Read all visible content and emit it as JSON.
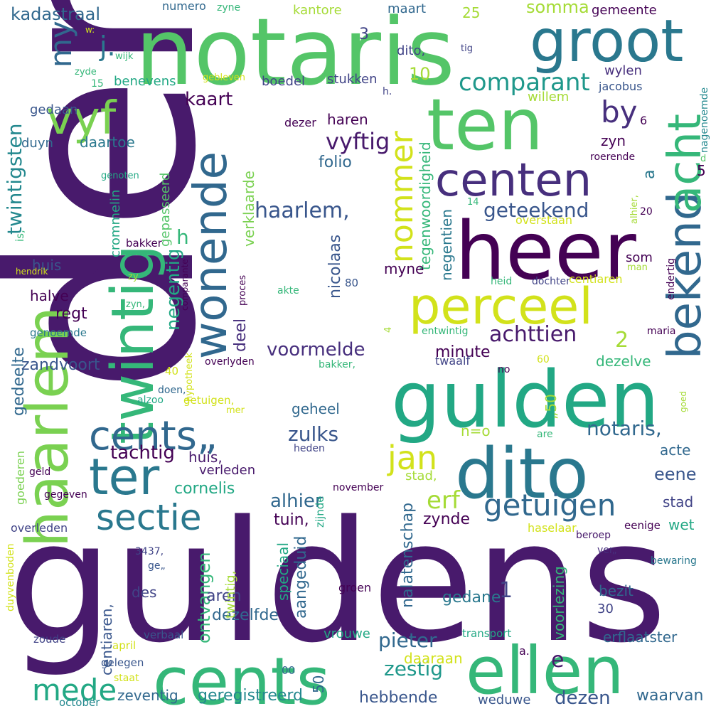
{
  "palette": {
    "background": "#ffffff",
    "colors": [
      "#440154",
      "#481a6c",
      "#472f7d",
      "#414487",
      "#39568c",
      "#31688e",
      "#2a788e",
      "#23888e",
      "#1f988b",
      "#22a884",
      "#35b779",
      "#54c568",
      "#7ad151",
      "#a5db36",
      "#d2e21b",
      "#fde725"
    ]
  },
  "words": [
    {
      "text": "den",
      "color": "#481a6c"
    },
    {
      "text": "guldens",
      "color": "#481a6c"
    },
    {
      "text": "notaris",
      "color": "#54c568"
    },
    {
      "text": "ten",
      "color": "#54c568"
    },
    {
      "text": "heer",
      "color": "#440154"
    },
    {
      "text": "gulden",
      "color": "#22a884"
    },
    {
      "text": "dito",
      "color": "#2a788e"
    },
    {
      "text": "groot",
      "color": "#2a788e"
    },
    {
      "text": "haarlem",
      "color": "#7ad151"
    },
    {
      "text": "twintig",
      "color": "#35b779"
    },
    {
      "text": "cents",
      "color": "#35b779"
    },
    {
      "text": "ellen",
      "color": "#35b779"
    },
    {
      "text": "bekend",
      "color": "#31688e"
    },
    {
      "text": "acht",
      "color": "#35b779"
    },
    {
      "text": "perceel",
      "color": "#d2e21b"
    },
    {
      "text": "centen",
      "color": "#472f7d"
    },
    {
      "text": "wonende",
      "color": "#31688e"
    },
    {
      "text": "vyf",
      "color": "#7ad151"
    },
    {
      "text": "ter",
      "color": "#2a788e"
    },
    {
      "text": "cents„",
      "color": "#31688e"
    },
    {
      "text": "sectie",
      "color": "#2a788e"
    },
    {
      "text": "getuigen",
      "color": "#31688e"
    },
    {
      "text": "nommer",
      "color": "#d2e21b"
    },
    {
      "text": "by",
      "color": "#472f7d"
    },
    {
      "text": "jan",
      "color": "#d2e21b"
    },
    {
      "text": "mede",
      "color": "#22a884"
    },
    {
      "text": "my",
      "color": "#31688e"
    },
    {
      "text": "j.",
      "color": "#2a788e"
    },
    {
      "text": "comparant",
      "color": "#1f988b"
    },
    {
      "text": "geteekend",
      "color": "#39568c"
    },
    {
      "text": "vyftig",
      "color": "#481a6c"
    },
    {
      "text": "haarlem,",
      "color": "#39568c"
    },
    {
      "text": "voormelde",
      "color": "#472f7d"
    },
    {
      "text": "achttien",
      "color": "#481a6c"
    },
    {
      "text": "notaris,",
      "color": "#31688e"
    },
    {
      "text": "zulks",
      "color": "#39568c"
    },
    {
      "text": "tachtig",
      "color": "#440154"
    },
    {
      "text": "erf",
      "color": "#a5db36"
    },
    {
      "text": "alhier",
      "color": "#31688e"
    },
    {
      "text": "pieter",
      "color": "#31688e"
    },
    {
      "text": "zestig",
      "color": "#1f988b"
    },
    {
      "text": "dezen",
      "color": "#39568c"
    },
    {
      "text": "eene",
      "color": "#39568c"
    },
    {
      "text": "kaart",
      "color": "#440154"
    },
    {
      "text": "somma",
      "color": "#a5db36"
    },
    {
      "text": "10",
      "color": "#a5db36"
    },
    {
      "text": "negentig",
      "color": "#22a884"
    },
    {
      "text": "twintigsten",
      "color": "#23888e"
    },
    {
      "text": "kadastraal",
      "color": "#31688e"
    },
    {
      "text": "gemeente",
      "color": "#440154"
    },
    {
      "text": "kantore",
      "color": "#a5db36"
    },
    {
      "text": "maart",
      "color": "#31688e"
    },
    {
      "text": "dito,",
      "color": "#414487"
    },
    {
      "text": "stukken",
      "color": "#414487"
    },
    {
      "text": "boedel",
      "color": "#414487"
    },
    {
      "text": "benevens",
      "color": "#22a884"
    },
    {
      "text": "gedaan",
      "color": "#39568c"
    },
    {
      "text": "haren",
      "color": "#440154"
    },
    {
      "text": "folio",
      "color": "#31688e"
    },
    {
      "text": "wylen",
      "color": "#472f7d"
    },
    {
      "text": "zyn",
      "color": "#440154"
    },
    {
      "text": "som",
      "color": "#440154"
    },
    {
      "text": "tegenwoordigheid",
      "color": "#35b779"
    },
    {
      "text": "negentien",
      "color": "#2a788e"
    },
    {
      "text": "daartoe",
      "color": "#2a788e"
    },
    {
      "text": "duyn",
      "color": "#31688e"
    },
    {
      "text": "huis",
      "color": "#39568c"
    },
    {
      "text": "zoo",
      "color": "#481a6c"
    },
    {
      "text": "halve",
      "color": "#440154"
    },
    {
      "text": "regt",
      "color": "#440154"
    },
    {
      "text": "gedeelte",
      "color": "#31688e"
    },
    {
      "text": "zandvoort",
      "color": "#39568c"
    },
    {
      "text": "deel",
      "color": "#472f7d"
    },
    {
      "text": "minute",
      "color": "#440154"
    },
    {
      "text": "geheel",
      "color": "#31688e"
    },
    {
      "text": "dezelve",
      "color": "#35b779"
    },
    {
      "text": "acte",
      "color": "#31688e"
    },
    {
      "text": "stad,",
      "color": "#a5db36"
    },
    {
      "text": "stad",
      "color": "#414487"
    },
    {
      "text": "wet",
      "color": "#22a884"
    },
    {
      "text": "zynde",
      "color": "#440154"
    },
    {
      "text": "tuin,",
      "color": "#440154"
    },
    {
      "text": "cornelis",
      "color": "#22a884"
    },
    {
      "text": "huis,",
      "color": "#481a6c"
    },
    {
      "text": "verleden",
      "color": "#481a6c"
    },
    {
      "text": "nalatenschap",
      "color": "#31688e"
    },
    {
      "text": "aangeduid",
      "color": "#31688e"
    },
    {
      "text": "ontvangen",
      "color": "#35b779"
    },
    {
      "text": "aren",
      "color": "#414487"
    },
    {
      "text": "des",
      "color": "#414487"
    },
    {
      "text": "gedane",
      "color": "#2a788e"
    },
    {
      "text": "bezit",
      "color": "#31688e"
    },
    {
      "text": "30",
      "color": "#414487"
    },
    {
      "text": "dezelfde",
      "color": "#31688e"
    },
    {
      "text": "vrouwe",
      "color": "#22a884"
    },
    {
      "text": "erflaatster",
      "color": "#31688e"
    },
    {
      "text": "geregistreerd",
      "color": "#23888e"
    },
    {
      "text": "hebbende",
      "color": "#39568c"
    },
    {
      "text": "weduwe",
      "color": "#39568c"
    },
    {
      "text": "waarvan",
      "color": "#31688e"
    },
    {
      "text": "zeventig",
      "color": "#31688e"
    },
    {
      "text": "daaraan",
      "color": "#d2e21b"
    },
    {
      "text": "50",
      "color": "#31688e"
    },
    {
      "text": "centiaren,",
      "color": "#39568c"
    },
    {
      "text": "twintig,",
      "color": "#a5db36"
    },
    {
      "text": "speciaal",
      "color": "#22a884"
    },
    {
      "text": "voorlezing",
      "color": "#35b779"
    },
    {
      "text": "e",
      "color": "#481a6c"
    },
    {
      "text": "1",
      "color": "#414487"
    },
    {
      "text": "2",
      "color": "#a5db36"
    },
    {
      "text": "3",
      "color": "#414487"
    },
    {
      "text": "a",
      "color": "#2a788e"
    },
    {
      "text": "h",
      "color": "#35b779"
    },
    {
      "text": "5",
      "color": "#440154"
    },
    {
      "text": "6",
      "color": "#440154"
    },
    {
      "text": "25",
      "color": "#a5db36"
    },
    {
      "text": "crommelin",
      "color": "#22a884"
    },
    {
      "text": "gepasseerd",
      "color": "#54c568"
    },
    {
      "text": "verklaarde",
      "color": "#7ad151"
    },
    {
      "text": "nicolaas",
      "color": "#39568c"
    },
    {
      "text": "myne",
      "color": "#440154"
    },
    {
      "text": "willem",
      "color": "#a5db36"
    },
    {
      "text": "jacobus",
      "color": "#39568c"
    },
    {
      "text": "nagenoemde",
      "color": "#23888e"
    },
    {
      "text": "roerende",
      "color": "#440154"
    },
    {
      "text": "alhier,",
      "color": "#a5db36"
    },
    {
      "text": "overstaan",
      "color": "#d2e21b"
    },
    {
      "text": "endertig",
      "color": "#440154"
    },
    {
      "text": "maria",
      "color": "#440154"
    },
    {
      "text": "man",
      "color": "#a5db36"
    },
    {
      "text": "dochter",
      "color": "#414487"
    },
    {
      "text": "heid",
      "color": "#35b779"
    },
    {
      "text": "centiaren",
      "color": "#d2e21b"
    },
    {
      "text": "entwintig",
      "color": "#35b779"
    },
    {
      "text": "twaalf",
      "color": "#414487"
    },
    {
      "text": "bakker,",
      "color": "#35b779"
    },
    {
      "text": "overlyden",
      "color": "#440154"
    },
    {
      "text": "no",
      "color": "#440154"
    },
    {
      "text": "60",
      "color": "#d2e21b"
    },
    {
      "text": "„50",
      "color": "#a5db36"
    },
    {
      "text": "n=o",
      "color": "#a5db36"
    },
    {
      "text": "are",
      "color": "#35b779"
    },
    {
      "text": "goed",
      "color": "#a5db36"
    },
    {
      "text": "heden",
      "color": "#414487"
    },
    {
      "text": "november",
      "color": "#440154"
    },
    {
      "text": "zijnde",
      "color": "#22a884"
    },
    {
      "text": "haselaar",
      "color": "#d2e21b"
    },
    {
      "text": "beroep",
      "color": "#481a6c"
    },
    {
      "text": "eenige",
      "color": "#440154"
    },
    {
      "text": "ver„",
      "color": "#472f7d"
    },
    {
      "text": "bewaring",
      "color": "#2a788e"
    },
    {
      "text": "groen",
      "color": "#440154"
    },
    {
      "text": "transport",
      "color": "#22a884"
    },
    {
      "text": "a.",
      "color": "#440154"
    },
    {
      "text": "00",
      "color": "#31688e"
    },
    {
      "text": "verbaal",
      "color": "#39568c"
    },
    {
      "text": "april",
      "color": "#d2e21b"
    },
    {
      "text": "gelegen",
      "color": "#39568c"
    },
    {
      "text": "staat",
      "color": "#d2e21b"
    },
    {
      "text": "october",
      "color": "#23888e"
    },
    {
      "text": "zoude",
      "color": "#414487"
    },
    {
      "text": "overleden",
      "color": "#414487"
    },
    {
      "text": "duyvenboden",
      "color": "#d2e21b"
    },
    {
      "text": "3437,",
      "color": "#414487"
    },
    {
      "text": "ge„",
      "color": "#39568c"
    },
    {
      "text": "geld",
      "color": "#440154"
    },
    {
      "text": "gegeven",
      "color": "#440154"
    },
    {
      "text": "goederen",
      "color": "#7ad151"
    },
    {
      "text": "genoemde",
      "color": "#2a788e"
    },
    {
      "text": "hendrik",
      "color": "#d2e21b"
    },
    {
      "text": "is,",
      "color": "#35b779"
    },
    {
      "text": "genoten",
      "color": "#22a884"
    },
    {
      "text": "bakker",
      "color": "#440154"
    },
    {
      "text": "comparante",
      "color": "#440154"
    },
    {
      "text": "proces",
      "color": "#440154"
    },
    {
      "text": "zy",
      "color": "#a5db36"
    },
    {
      "text": "zyn,",
      "color": "#35b779"
    },
    {
      "text": "akte",
      "color": "#35b779"
    },
    {
      "text": "80",
      "color": "#39568c"
    },
    {
      "text": "4",
      "color": "#a5db36"
    },
    {
      "text": "hypotheek",
      "color": "#d2e21b"
    },
    {
      "text": "doen,",
      "color": "#31688e"
    },
    {
      "text": "alzoo",
      "color": "#22a884"
    },
    {
      "text": "40",
      "color": "#d2e21b"
    },
    {
      "text": "getuigen,",
      "color": "#d2e21b"
    },
    {
      "text": "mer",
      "color": "#d2e21b"
    },
    {
      "text": "numero",
      "color": "#31688e"
    },
    {
      "text": "zyne",
      "color": "#35b779"
    },
    {
      "text": "w:",
      "color": "#d2e21b"
    },
    {
      "text": "wijk",
      "color": "#35b779"
    },
    {
      "text": "zyde",
      "color": "#35b779"
    },
    {
      "text": "15",
      "color": "#35b779"
    },
    {
      "text": "gebleven",
      "color": "#d2e21b"
    },
    {
      "text": "h.",
      "color": "#414487"
    },
    {
      "text": "tig",
      "color": "#414487"
    },
    {
      "text": "dezer",
      "color": "#440154"
    },
    {
      "text": "14",
      "color": "#35b779"
    },
    {
      "text": "d",
      "color": "#54c568"
    },
    {
      "text": "20",
      "color": "#440154"
    }
  ]
}
